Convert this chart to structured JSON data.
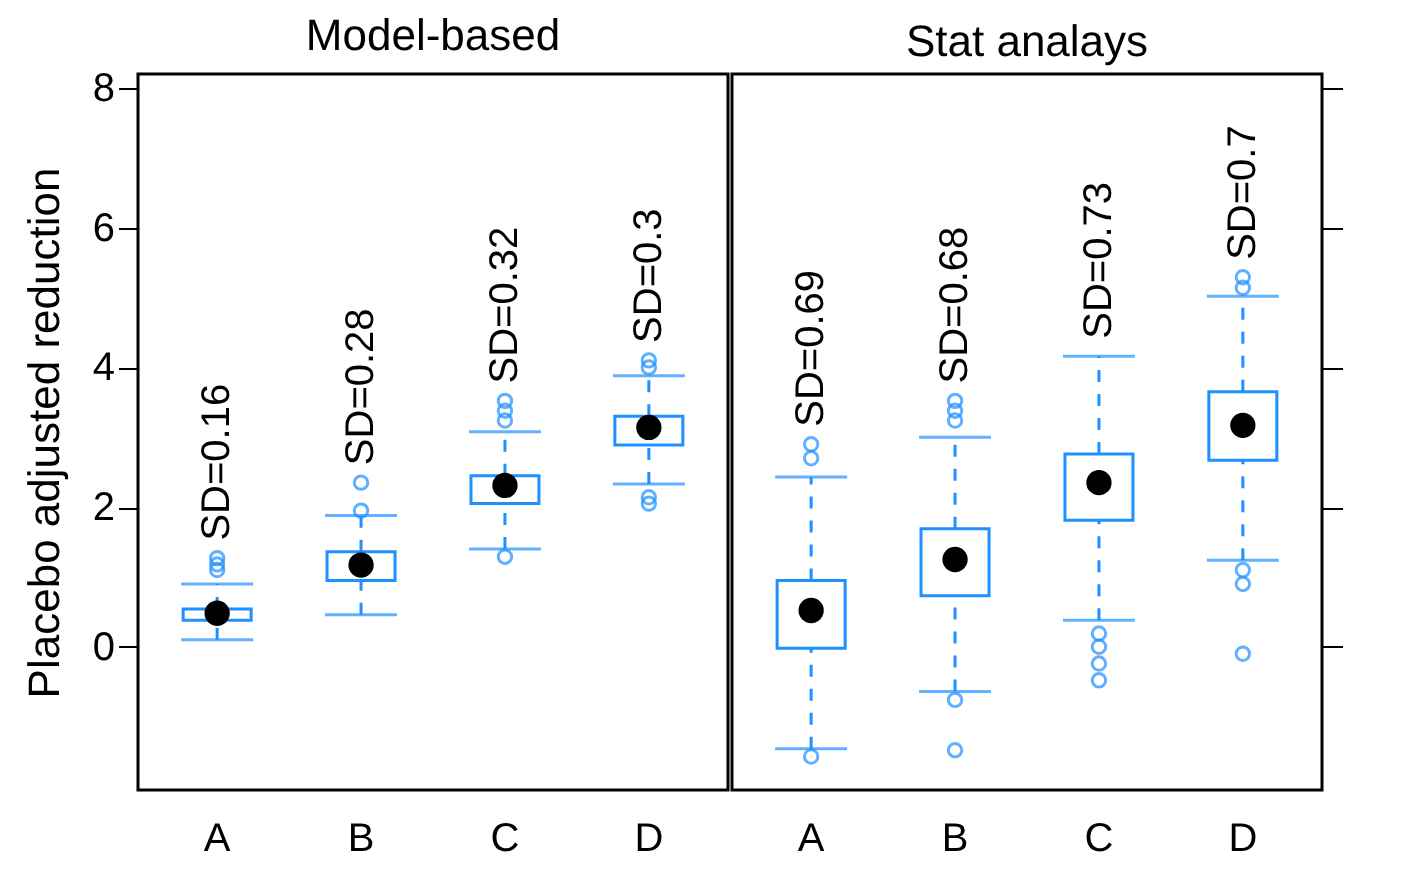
{
  "chart_data": [
    {
      "type": "box",
      "title": "Model-based",
      "ylabel": "Placebo adjusted reduction",
      "categories": [
        "A",
        "B",
        "C",
        "D"
      ],
      "ylim": [
        -2.05,
        8.2
      ],
      "yticks": [
        0,
        2,
        4,
        6,
        8
      ],
      "series": [
        {
          "color": "#1e90ff",
          "boxes": [
            {
              "low": 0.1,
              "q1": 0.38,
              "median": 0.48,
              "q3": 0.54,
              "high": 0.9,
              "outliers": [
                1.1,
                1.18,
                1.27
              ]
            },
            {
              "low": 0.46,
              "q1": 0.95,
              "median": 1.17,
              "q3": 1.36,
              "high": 1.88,
              "outliers": [
                1.95,
                2.35
              ]
            },
            {
              "low": 1.4,
              "q1": 2.05,
              "median": 2.31,
              "q3": 2.45,
              "high": 3.08,
              "outliers": [
                1.29,
                3.24,
                3.38,
                3.52
              ]
            },
            {
              "low": 2.33,
              "q1": 2.89,
              "median": 3.14,
              "q3": 3.3,
              "high": 3.88,
              "outliers": [
                2.05,
                2.14,
                4.0,
                4.1
              ]
            }
          ]
        }
      ],
      "annotations": [
        "SD=0.16",
        "SD=0.28",
        "SD=0.32",
        "SD=0.3"
      ]
    },
    {
      "type": "box",
      "title": "Stat analays",
      "categories": [
        "A",
        "B",
        "C",
        "D"
      ],
      "ylim": [
        -2.05,
        8.2
      ],
      "yticks": [
        0,
        2,
        4,
        6,
        8
      ],
      "tick_labels": "x",
      "series": [
        {
          "color": "#1e90ff",
          "boxes": [
            {
              "low": -1.46,
              "q1": -0.02,
              "median": 0.52,
              "q3": 0.95,
              "high": 2.43,
              "outliers": [
                -1.57,
                2.7,
                2.9
              ]
            },
            {
              "low": -0.64,
              "q1": 0.73,
              "median": 1.25,
              "q3": 1.69,
              "high": 3.0,
              "outliers": [
                -1.48,
                -0.76,
                3.24,
                3.38,
                3.52
              ]
            },
            {
              "low": 0.38,
              "q1": 1.81,
              "median": 2.35,
              "q3": 2.76,
              "high": 4.16,
              "outliers": [
                -0.48,
                -0.24,
                0.0,
                0.19
              ]
            },
            {
              "low": 1.24,
              "q1": 2.67,
              "median": 3.17,
              "q3": 3.65,
              "high": 5.02,
              "outliers": [
                -0.1,
                0.9,
                1.1,
                5.14,
                5.29
              ]
            }
          ]
        }
      ],
      "annotations": [
        "SD=0.69",
        "SD=0.68",
        "SD=0.73",
        "SD=0.7"
      ]
    }
  ]
}
